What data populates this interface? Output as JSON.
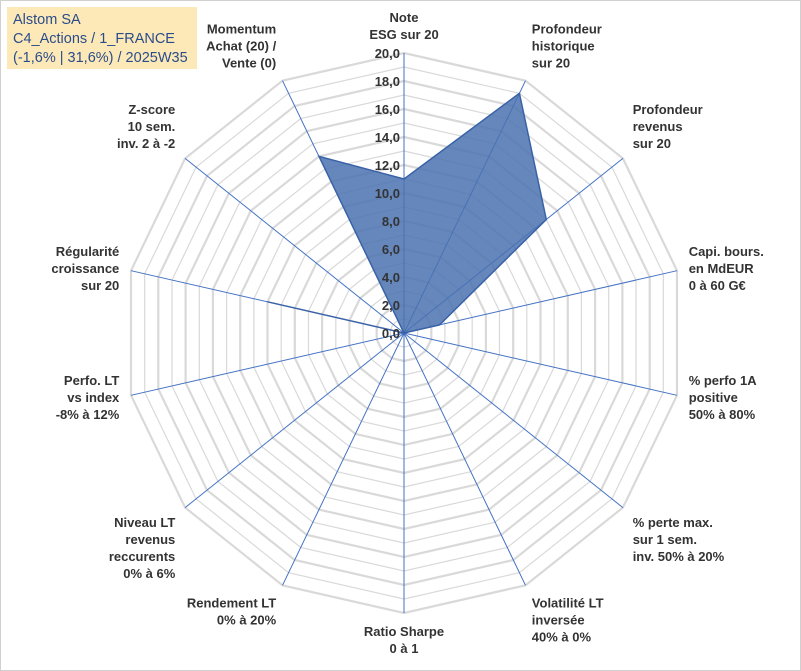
{
  "title_box": {
    "line1": "Alstom SA",
    "line2": "C4_Actions / 1_FRANCE",
    "line3": "(-1,6% | 31,6%) / 2025W35"
  },
  "colors": {
    "fill": "#4a72b0",
    "stroke": "#3a62a7",
    "grid": "#d9d9d9",
    "spoke": "#4472c4",
    "title_bg": "#fde9b8",
    "title_text": "#2a4d8a"
  },
  "chart_data": {
    "type": "radar",
    "rmin": 0,
    "rmax": 20,
    "major_step": 2,
    "minor_step": 1,
    "tick_labels": [
      "0,0",
      "2,0",
      "4,0",
      "6,0",
      "8,0",
      "10,0",
      "12,0",
      "14,0",
      "16,0",
      "18,0",
      "20,0"
    ],
    "axes": [
      {
        "label": [
          "Note",
          "ESG sur 20"
        ],
        "value": 11.0
      },
      {
        "label": [
          "Profondeur",
          "historique",
          "sur 20"
        ],
        "value": 19.0
      },
      {
        "label": [
          "Profondeur",
          "revenus",
          "sur 20"
        ],
        "value": 13.0
      },
      {
        "label": [
          "Capi. bours.",
          "en MdEUR",
          "0 à 60 G€"
        ],
        "value": 2.6
      },
      {
        "label": [
          "% perfo 1A",
          "positive",
          "50% à 80%"
        ],
        "value": 0.0
      },
      {
        "label": [
          "% perte max.",
          "sur 1 sem.",
          "inv. 50% à 20%"
        ],
        "value": 0.0
      },
      {
        "label": [
          "Volatilité LT",
          "inversée",
          "40% à 0%"
        ],
        "value": 0.0
      },
      {
        "label": [
          "Ratio Sharpe",
          "0 à 1"
        ],
        "value": 0.0
      },
      {
        "label": [
          "Rendement LT",
          "0% à 20%"
        ],
        "value": 0.0
      },
      {
        "label": [
          "Niveau LT",
          "revenus",
          "reccurents",
          "0% à 6%"
        ],
        "value": 0.0
      },
      {
        "label": [
          "Perfo. LT",
          "vs index",
          "-8% à 12%"
        ],
        "value": 0.0
      },
      {
        "label": [
          "Régularité",
          "croissance",
          "sur 20"
        ],
        "value": 10.0
      },
      {
        "label": [
          "Z-score",
          "10 sem.",
          "inv. 2 à -2"
        ],
        "value": 0.0
      },
      {
        "label": [
          "Momentum",
          "Achat (20) /",
          "Vente (0)"
        ],
        "value": 14.0
      }
    ]
  }
}
